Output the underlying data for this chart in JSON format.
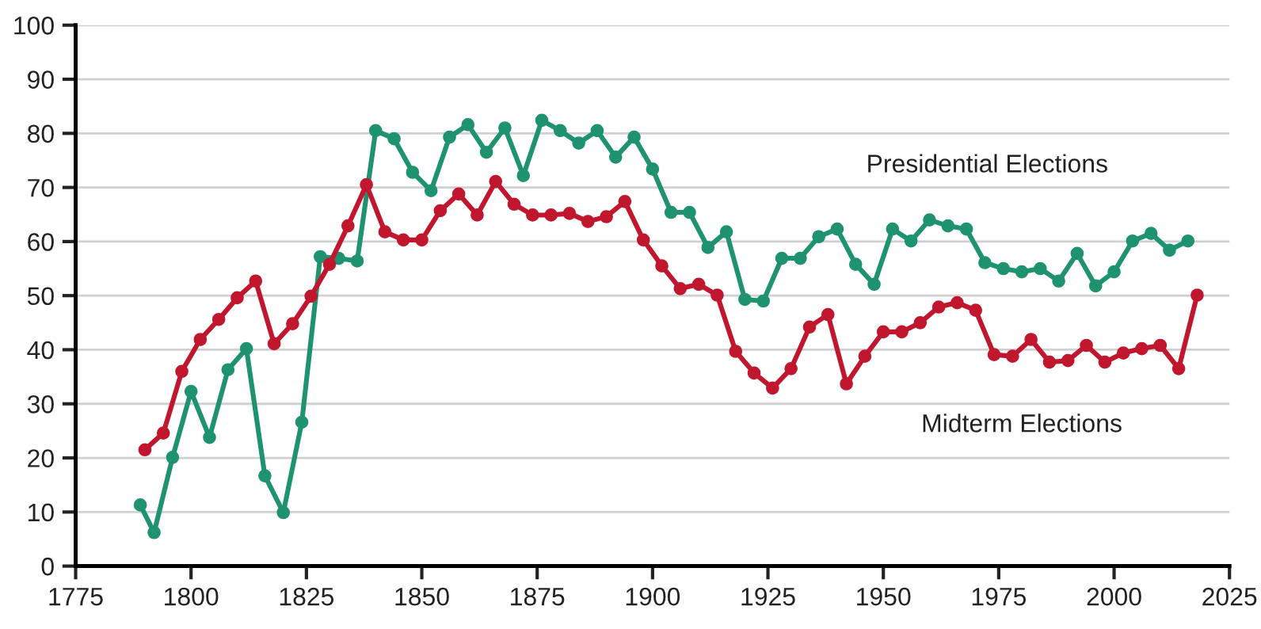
{
  "chart_data": {
    "type": "line",
    "xlim": [
      1775,
      2025
    ],
    "xticks": [
      1775,
      1800,
      1825,
      1850,
      1875,
      1900,
      1925,
      1950,
      1975,
      2000,
      2025
    ],
    "ylim": [
      0,
      100
    ],
    "yticks": [
      0,
      10,
      20,
      30,
      40,
      50,
      60,
      70,
      80,
      90,
      100
    ],
    "grid": "y",
    "marker": "circle",
    "line_style": "solid",
    "legend": false,
    "series": [
      {
        "name": "Presidential Elections",
        "color": "#1f9270",
        "x": [
          1789,
          1792,
          1796,
          1800,
          1804,
          1808,
          1812,
          1816,
          1820,
          1824,
          1828,
          1832,
          1836,
          1840,
          1844,
          1848,
          1852,
          1856,
          1860,
          1864,
          1868,
          1872,
          1876,
          1880,
          1884,
          1888,
          1892,
          1896,
          1900,
          1904,
          1908,
          1912,
          1916,
          1920,
          1924,
          1928,
          1932,
          1936,
          1940,
          1944,
          1948,
          1952,
          1956,
          1960,
          1964,
          1968,
          1972,
          1976,
          1980,
          1984,
          1988,
          1992,
          1996,
          2000,
          2004,
          2008,
          2012,
          2016
        ],
        "values": [
          11.3,
          6.2,
          20.1,
          32.3,
          23.8,
          36.3,
          40.2,
          16.7,
          9.9,
          26.6,
          57.2,
          56.9,
          56.4,
          80.5,
          79.0,
          72.8,
          69.4,
          79.3,
          81.6,
          76.5,
          81.0,
          72.2,
          82.4,
          80.5,
          78.2,
          80.5,
          75.6,
          79.3,
          73.4,
          65.4,
          65.4,
          58.9,
          61.8,
          49.3,
          49.0,
          56.9,
          56.9,
          60.9,
          62.3,
          55.8,
          52.1,
          62.3,
          60.1,
          64.0,
          62.9,
          62.3,
          56.1,
          55.0,
          54.4,
          55.0,
          52.7,
          57.8,
          51.8,
          54.4,
          60.1,
          61.5,
          58.4,
          60.1
        ]
      },
      {
        "name": "Midterm Elections",
        "color": "#c0172f",
        "x": [
          1790,
          1794,
          1798,
          1802,
          1806,
          1810,
          1814,
          1818,
          1822,
          1826,
          1830,
          1834,
          1838,
          1842,
          1846,
          1850,
          1854,
          1858,
          1862,
          1866,
          1870,
          1874,
          1878,
          1882,
          1886,
          1890,
          1894,
          1898,
          1902,
          1906,
          1910,
          1914,
          1918,
          1922,
          1926,
          1930,
          1934,
          1938,
          1942,
          1946,
          1950,
          1954,
          1958,
          1962,
          1966,
          1970,
          1974,
          1978,
          1982,
          1986,
          1990,
          1994,
          1998,
          2002,
          2006,
          2010,
          2014,
          2018
        ],
        "values": [
          21.5,
          24.6,
          36.0,
          41.9,
          45.6,
          49.6,
          52.7,
          41.1,
          44.8,
          49.9,
          55.8,
          62.9,
          70.5,
          61.8,
          60.3,
          60.3,
          65.7,
          68.8,
          64.9,
          71.1,
          66.9,
          64.9,
          64.9,
          65.2,
          63.7,
          64.6,
          67.4,
          60.3,
          55.5,
          51.3,
          52.1,
          50.1,
          39.7,
          35.7,
          32.9,
          36.5,
          44.2,
          46.5,
          33.7,
          38.8,
          43.3,
          43.3,
          45.0,
          47.9,
          48.7,
          47.3,
          39.1,
          38.8,
          41.9,
          37.7,
          38.0,
          40.8,
          37.7,
          39.4,
          40.2,
          40.8,
          36.5,
          50.1
        ]
      }
    ]
  }
}
